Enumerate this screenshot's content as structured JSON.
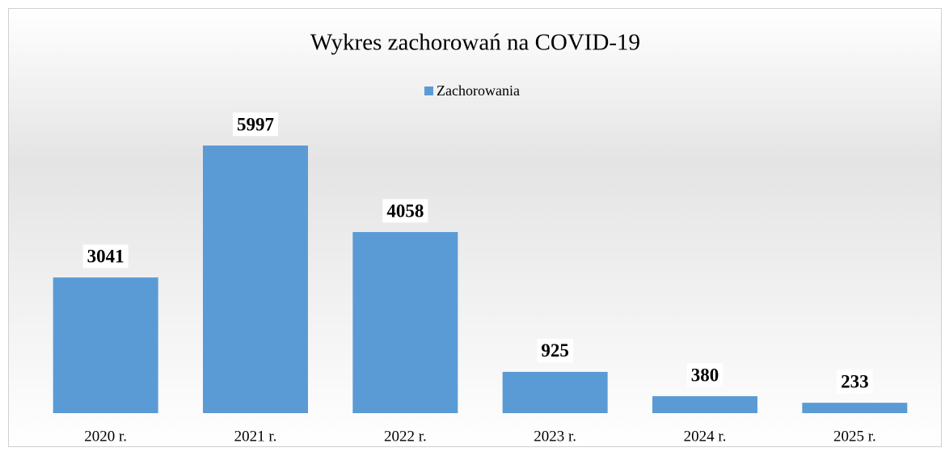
{
  "chart_data": {
    "type": "bar",
    "title": "Wykres zachorowań na COVID-19",
    "categories": [
      "2020 r.",
      "2021 r.",
      "2022 r.",
      "2023 r.",
      "2024 r.",
      "2025 r."
    ],
    "series": [
      {
        "name": "Zachorowania",
        "color": "#5b9bd5",
        "values": [
          3041,
          5997,
          4058,
          925,
          380,
          233
        ]
      }
    ],
    "legend": "top"
  }
}
